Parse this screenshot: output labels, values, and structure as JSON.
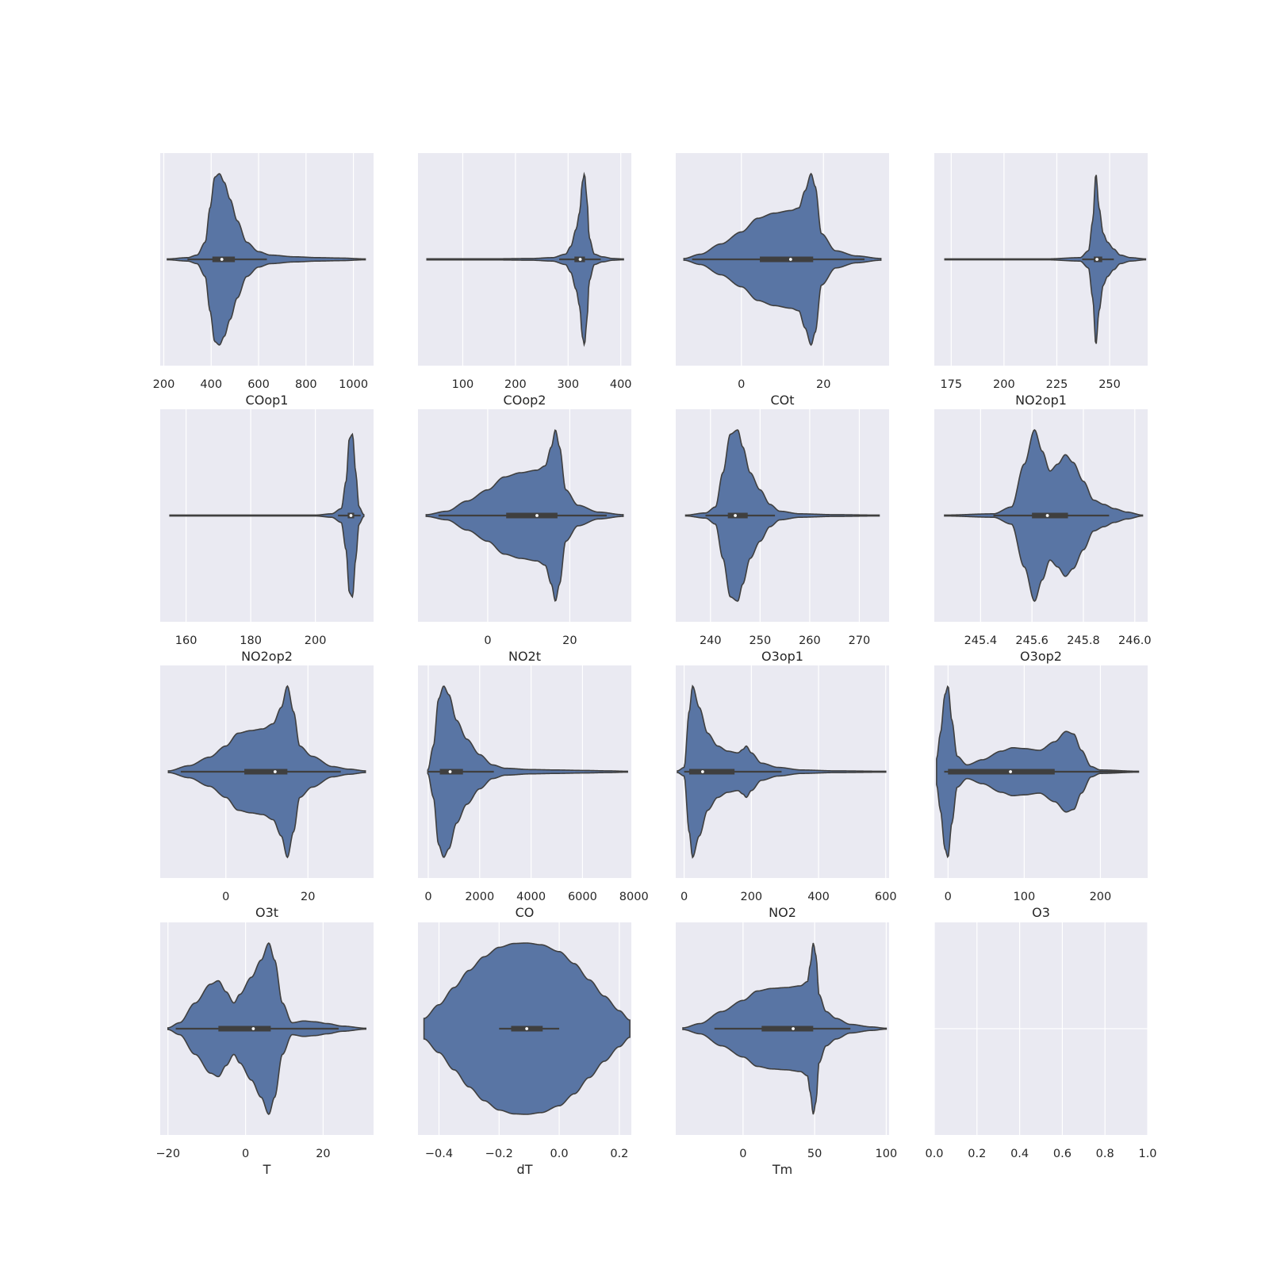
{
  "figure": {
    "layout": "4x4 grid of horizontal violin plots",
    "background": "#FFFFFF",
    "panel_background": "#EAEAF2",
    "violin_color": "#5975A4",
    "edge_color": "#3F3F3F"
  },
  "chart_data": [
    {
      "type": "violin",
      "xlabel": "COop1",
      "xlim": [
        185,
        1085
      ],
      "xticks": [
        200,
        400,
        600,
        800,
        1000
      ],
      "xtick_labels": [
        "200",
        "400",
        "600",
        "800",
        "1000"
      ],
      "min": 215,
      "max": 1050,
      "q1": 405,
      "median": 445,
      "q3": 500,
      "whisker_low": 300,
      "whisker_high": 635,
      "density": [
        [
          215,
          0.005
        ],
        [
          300,
          0.02
        ],
        [
          340,
          0.05
        ],
        [
          375,
          0.2
        ],
        [
          395,
          0.6
        ],
        [
          415,
          0.96
        ],
        [
          435,
          1.0
        ],
        [
          455,
          0.9
        ],
        [
          480,
          0.7
        ],
        [
          510,
          0.45
        ],
        [
          550,
          0.2
        ],
        [
          600,
          0.09
        ],
        [
          650,
          0.05
        ],
        [
          750,
          0.03
        ],
        [
          850,
          0.02
        ],
        [
          950,
          0.015
        ],
        [
          1050,
          0.005
        ]
      ]
    },
    {
      "type": "violin",
      "xlabel": "COop2",
      "xlim": [
        15,
        420
      ],
      "xticks": [
        100,
        200,
        300,
        400
      ],
      "xtick_labels": [
        "100",
        "200",
        "300",
        "400"
      ],
      "min": 32,
      "max": 405,
      "q1": 312,
      "median": 323,
      "q3": 332,
      "whisker_low": 283,
      "whisker_high": 362,
      "density": [
        [
          32,
          0.006
        ],
        [
          150,
          0.006
        ],
        [
          230,
          0.01
        ],
        [
          270,
          0.02
        ],
        [
          295,
          0.06
        ],
        [
          305,
          0.15
        ],
        [
          315,
          0.35
        ],
        [
          322,
          0.55
        ],
        [
          327,
          0.9
        ],
        [
          331,
          1.0
        ],
        [
          336,
          0.7
        ],
        [
          340,
          0.25
        ],
        [
          350,
          0.06
        ],
        [
          365,
          0.03
        ],
        [
          385,
          0.01
        ],
        [
          405,
          0.005
        ]
      ]
    },
    {
      "type": "violin",
      "xlabel": "COt",
      "xlim": [
        -16,
        36
      ],
      "xticks": [
        0,
        20
      ],
      "xtick_labels": [
        "0",
        "20"
      ],
      "min": -14,
      "max": 34,
      "q1": 4.5,
      "median": 12,
      "q3": 17.5,
      "whisker_low": -12,
      "whisker_high": 30,
      "density": [
        [
          -14,
          0.01
        ],
        [
          -10,
          0.06
        ],
        [
          -5,
          0.18
        ],
        [
          0,
          0.32
        ],
        [
          4,
          0.48
        ],
        [
          8,
          0.54
        ],
        [
          12,
          0.57
        ],
        [
          14,
          0.6
        ],
        [
          15.5,
          0.8
        ],
        [
          17,
          1.0
        ],
        [
          18,
          0.85
        ],
        [
          19.5,
          0.3
        ],
        [
          23,
          0.1
        ],
        [
          28,
          0.04
        ],
        [
          34,
          0.01
        ]
      ]
    },
    {
      "type": "violin",
      "xlabel": "NO2op1",
      "xlim": [
        167,
        268
      ],
      "xticks": [
        175,
        200,
        225,
        250
      ],
      "xtick_labels": [
        "175",
        "200",
        "225",
        "250"
      ],
      "min": 172,
      "max": 267,
      "q1": 242.5,
      "median": 244,
      "q3": 246.5,
      "whisker_low": 237,
      "whisker_high": 252,
      "density": [
        [
          172,
          0.005
        ],
        [
          220,
          0.005
        ],
        [
          236,
          0.02
        ],
        [
          240,
          0.1
        ],
        [
          242,
          0.45
        ],
        [
          243.5,
          1.0
        ],
        [
          245,
          0.6
        ],
        [
          247,
          0.3
        ],
        [
          249,
          0.2
        ],
        [
          252,
          0.12
        ],
        [
          255,
          0.05
        ],
        [
          260,
          0.02
        ],
        [
          267,
          0.005
        ]
      ]
    },
    {
      "type": "violin",
      "xlabel": "NO2op2",
      "xlim": [
        152,
        218
      ],
      "xticks": [
        160,
        180,
        200
      ],
      "xtick_labels": [
        "160",
        "180",
        "200"
      ],
      "min": 155,
      "max": 215,
      "q1": 210,
      "median": 211,
      "q3": 212,
      "whisker_low": 207,
      "whisker_high": 214,
      "density": [
        [
          155,
          0.005
        ],
        [
          200,
          0.005
        ],
        [
          205,
          0.02
        ],
        [
          208,
          0.08
        ],
        [
          209.5,
          0.4
        ],
        [
          210.5,
          0.9
        ],
        [
          211.5,
          0.95
        ],
        [
          212.5,
          0.5
        ],
        [
          213.5,
          0.1
        ],
        [
          215,
          0.01
        ]
      ]
    },
    {
      "type": "violin",
      "xlabel": "NO2t",
      "xlim": [
        -17,
        35
      ],
      "xticks": [
        0,
        20
      ],
      "xtick_labels": [
        "0",
        "20"
      ],
      "min": -15,
      "max": 33,
      "q1": 4.5,
      "median": 12,
      "q3": 17,
      "whisker_low": -12,
      "whisker_high": 29,
      "density": [
        [
          -15,
          0.01
        ],
        [
          -10,
          0.05
        ],
        [
          -5,
          0.17
        ],
        [
          0,
          0.3
        ],
        [
          4,
          0.45
        ],
        [
          8,
          0.5
        ],
        [
          12,
          0.53
        ],
        [
          14,
          0.58
        ],
        [
          15.5,
          0.8
        ],
        [
          16.5,
          1.0
        ],
        [
          17.5,
          0.8
        ],
        [
          19,
          0.3
        ],
        [
          22,
          0.12
        ],
        [
          27,
          0.04
        ],
        [
          33,
          0.01
        ]
      ]
    },
    {
      "type": "violin",
      "xlabel": "O3op1",
      "xlim": [
        233,
        276
      ],
      "xticks": [
        240,
        250,
        260,
        270
      ],
      "xtick_labels": [
        "240",
        "250",
        "260",
        "270"
      ],
      "min": 235,
      "max": 274,
      "q1": 243.5,
      "median": 245,
      "q3": 247.5,
      "whisker_low": 239,
      "whisker_high": 253,
      "density": [
        [
          235,
          0.005
        ],
        [
          239,
          0.03
        ],
        [
          241,
          0.1
        ],
        [
          242.5,
          0.5
        ],
        [
          244,
          0.95
        ],
        [
          245.5,
          1.0
        ],
        [
          246.5,
          0.8
        ],
        [
          248,
          0.5
        ],
        [
          250,
          0.3
        ],
        [
          252,
          0.13
        ],
        [
          254,
          0.05
        ],
        [
          258,
          0.02
        ],
        [
          265,
          0.01
        ],
        [
          274,
          0.005
        ]
      ]
    },
    {
      "type": "violin",
      "xlabel": "O3op2",
      "xlim": [
        245.22,
        246.05
      ],
      "xticks": [
        245.4,
        245.6,
        245.8,
        246.0
      ],
      "xtick_labels": [
        "245.4",
        "245.6",
        "245.8",
        "246.0"
      ],
      "min": 245.26,
      "max": 246.03,
      "q1": 245.6,
      "median": 245.66,
      "q3": 245.74,
      "whisker_low": 245.45,
      "whisker_high": 245.9,
      "density": [
        [
          245.26,
          0.005
        ],
        [
          245.45,
          0.02
        ],
        [
          245.52,
          0.1
        ],
        [
          245.57,
          0.6
        ],
        [
          245.61,
          1.0
        ],
        [
          245.64,
          0.75
        ],
        [
          245.67,
          0.52
        ],
        [
          245.7,
          0.6
        ],
        [
          245.73,
          0.71
        ],
        [
          245.76,
          0.62
        ],
        [
          245.8,
          0.4
        ],
        [
          245.84,
          0.18
        ],
        [
          245.88,
          0.13
        ],
        [
          245.92,
          0.08
        ],
        [
          245.97,
          0.04
        ],
        [
          246.03,
          0.005
        ]
      ]
    },
    {
      "type": "violin",
      "xlabel": "O3t",
      "xlim": [
        -16,
        36
      ],
      "xticks": [
        0,
        20
      ],
      "xtick_labels": [
        "0",
        "20"
      ],
      "min": -14,
      "max": 34,
      "q1": 4.5,
      "median": 12,
      "q3": 15,
      "whisker_low": -11,
      "whisker_high": 28,
      "density": [
        [
          -14,
          0.01
        ],
        [
          -9,
          0.07
        ],
        [
          -4,
          0.17
        ],
        [
          0,
          0.3
        ],
        [
          3,
          0.45
        ],
        [
          6,
          0.48
        ],
        [
          9,
          0.5
        ],
        [
          11.5,
          0.56
        ],
        [
          13.5,
          0.75
        ],
        [
          15,
          1.0
        ],
        [
          16.5,
          0.7
        ],
        [
          18,
          0.3
        ],
        [
          21,
          0.18
        ],
        [
          26,
          0.06
        ],
        [
          30,
          0.03
        ],
        [
          34,
          0.01
        ]
      ]
    },
    {
      "type": "violin",
      "xlabel": "CO",
      "xlim": [
        -400,
        7900
      ],
      "xticks": [
        0,
        2000,
        4000,
        6000,
        8000
      ],
      "xtick_labels": [
        "0",
        "2000",
        "4000",
        "6000",
        "8000"
      ],
      "min": -20,
      "max": 7750,
      "q1": 450,
      "median": 850,
      "q3": 1350,
      "whisker_low": 0,
      "whisker_high": 2550,
      "density": [
        [
          -20,
          0.02
        ],
        [
          200,
          0.3
        ],
        [
          400,
          0.85
        ],
        [
          600,
          1.0
        ],
        [
          800,
          0.9
        ],
        [
          1100,
          0.6
        ],
        [
          1500,
          0.38
        ],
        [
          2000,
          0.2
        ],
        [
          2500,
          0.08
        ],
        [
          3000,
          0.04
        ],
        [
          4000,
          0.025
        ],
        [
          5000,
          0.02
        ],
        [
          6000,
          0.015
        ],
        [
          7000,
          0.01
        ],
        [
          7750,
          0.005
        ]
      ]
    },
    {
      "type": "violin",
      "xlabel": "NO2",
      "xlim": [
        -25,
        610
      ],
      "xticks": [
        0,
        200,
        400,
        600
      ],
      "xtick_labels": [
        "0",
        "200",
        "400",
        "600"
      ],
      "min": -20,
      "max": 600,
      "q1": 15,
      "median": 55,
      "q3": 150,
      "whisker_low": 0,
      "whisker_high": 290,
      "density": [
        [
          -20,
          0.01
        ],
        [
          0,
          0.05
        ],
        [
          15,
          0.7
        ],
        [
          25,
          1.0
        ],
        [
          45,
          0.75
        ],
        [
          70,
          0.45
        ],
        [
          100,
          0.3
        ],
        [
          130,
          0.24
        ],
        [
          160,
          0.22
        ],
        [
          175,
          0.26
        ],
        [
          185,
          0.3
        ],
        [
          200,
          0.22
        ],
        [
          230,
          0.1
        ],
        [
          280,
          0.05
        ],
        [
          350,
          0.02
        ],
        [
          450,
          0.01
        ],
        [
          600,
          0.005
        ]
      ]
    },
    {
      "type": "violin",
      "xlabel": "O3",
      "xlim": [
        -18,
        262
      ],
      "xticks": [
        0,
        100,
        200
      ],
      "xtick_labels": [
        "0",
        "100",
        "200"
      ],
      "min": -15,
      "max": 250,
      "q1": 0,
      "median": 82,
      "q3": 140,
      "whisker_low": -5,
      "whisker_high": 240,
      "density": [
        [
          -15,
          0.15
        ],
        [
          -10,
          0.45
        ],
        [
          -4,
          0.9
        ],
        [
          0,
          1.0
        ],
        [
          5,
          0.6
        ],
        [
          12,
          0.18
        ],
        [
          25,
          0.08
        ],
        [
          45,
          0.14
        ],
        [
          70,
          0.24
        ],
        [
          85,
          0.28
        ],
        [
          100,
          0.27
        ],
        [
          120,
          0.25
        ],
        [
          140,
          0.35
        ],
        [
          155,
          0.47
        ],
        [
          165,
          0.44
        ],
        [
          175,
          0.25
        ],
        [
          188,
          0.06
        ],
        [
          200,
          0.02
        ],
        [
          250,
          0.005
        ]
      ]
    },
    {
      "type": "violin",
      "xlabel": "T",
      "xlim": [
        -22,
        33
      ],
      "xticks": [
        -20,
        0,
        20
      ],
      "xtick_labels": [
        "−20",
        "0",
        "20"
      ],
      "min": -20,
      "max": 31,
      "q1": -7,
      "median": 2,
      "q3": 6.5,
      "whisker_low": -18,
      "whisker_high": 24,
      "density": [
        [
          -20,
          0.01
        ],
        [
          -17,
          0.07
        ],
        [
          -13,
          0.3
        ],
        [
          -9,
          0.52
        ],
        [
          -7,
          0.56
        ],
        [
          -5,
          0.43
        ],
        [
          -3,
          0.3
        ],
        [
          -1.5,
          0.4
        ],
        [
          1.5,
          0.6
        ],
        [
          4,
          0.8
        ],
        [
          6,
          1.0
        ],
        [
          7.5,
          0.8
        ],
        [
          9.5,
          0.3
        ],
        [
          12,
          0.07
        ],
        [
          15,
          0.09
        ],
        [
          18,
          0.08
        ],
        [
          21,
          0.06
        ],
        [
          25,
          0.03
        ],
        [
          31,
          0.005
        ]
      ]
    },
    {
      "type": "violin",
      "xlabel": "dT",
      "xlim": [
        -0.47,
        0.24
      ],
      "xticks": [
        -0.4,
        -0.2,
        0.0,
        0.2
      ],
      "xtick_labels": [
        "−0.4",
        "−0.2",
        "0.0",
        "0.2"
      ],
      "min": -0.45,
      "max": 0.235,
      "q1": -0.16,
      "median": -0.108,
      "q3": -0.055,
      "whisker_low": -0.2,
      "whisker_high": 0.0,
      "density": [
        [
          -0.45,
          0.12
        ],
        [
          -0.4,
          0.28
        ],
        [
          -0.35,
          0.48
        ],
        [
          -0.3,
          0.68
        ],
        [
          -0.25,
          0.84
        ],
        [
          -0.2,
          0.95
        ],
        [
          -0.15,
          0.995
        ],
        [
          -0.108,
          1.0
        ],
        [
          -0.06,
          0.98
        ],
        [
          0.0,
          0.9
        ],
        [
          0.05,
          0.76
        ],
        [
          0.1,
          0.57
        ],
        [
          0.15,
          0.38
        ],
        [
          0.2,
          0.21
        ],
        [
          0.235,
          0.1
        ]
      ]
    },
    {
      "type": "violin",
      "xlabel": "Tm",
      "xlim": [
        -47,
        102
      ],
      "xticks": [
        0,
        50,
        100
      ],
      "xtick_labels": [
        "0",
        "50",
        "100"
      ],
      "min": -42,
      "max": 100,
      "q1": 13,
      "median": 35,
      "q3": 49,
      "whisker_low": -20,
      "whisker_high": 75,
      "density": [
        [
          -42,
          0.01
        ],
        [
          -30,
          0.06
        ],
        [
          -15,
          0.2
        ],
        [
          0,
          0.33
        ],
        [
          10,
          0.44
        ],
        [
          20,
          0.47
        ],
        [
          30,
          0.48
        ],
        [
          40,
          0.5
        ],
        [
          45,
          0.55
        ],
        [
          47,
          0.75
        ],
        [
          49,
          1.0
        ],
        [
          51,
          0.85
        ],
        [
          53,
          0.4
        ],
        [
          58,
          0.2
        ],
        [
          65,
          0.12
        ],
        [
          75,
          0.05
        ],
        [
          90,
          0.02
        ],
        [
          100,
          0.005
        ]
      ]
    },
    {
      "type": "empty",
      "xlabel": "",
      "xlim": [
        0,
        1
      ],
      "xticks": [
        0.0,
        0.2,
        0.4,
        0.6,
        0.8,
        1.0
      ],
      "xtick_labels": [
        "0.0",
        "0.2",
        "0.4",
        "0.6",
        "0.8",
        "1.0"
      ]
    }
  ]
}
